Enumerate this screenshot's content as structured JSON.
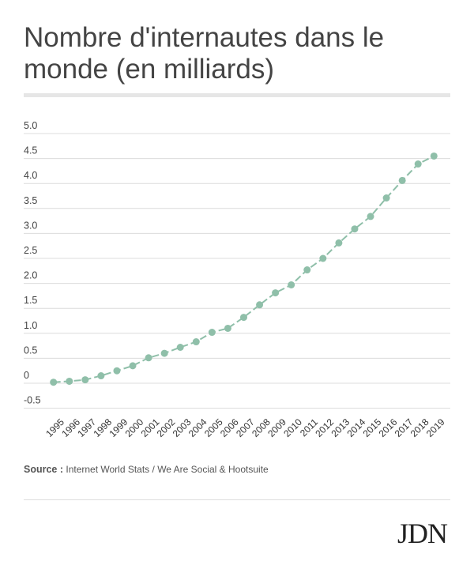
{
  "title": "Nombre d'internautes dans le monde (en milliards)",
  "source": {
    "label": "Source :",
    "text": "Internet World Stats / We Are Social & Hootsuite"
  },
  "logo": "JDN",
  "chart_data": {
    "type": "line",
    "title": "Nombre d'internautes dans le monde (en milliards)",
    "xlabel": "",
    "ylabel": "",
    "ylim": [
      -0.5,
      5.0
    ],
    "yticks": [
      "5.0",
      "4.5",
      "4.0",
      "3.5",
      "3.0",
      "2.5",
      "2.0",
      "1.5",
      "1.0",
      "0.5",
      "0",
      "-0.5"
    ],
    "ytick_values": [
      5.0,
      4.5,
      4.0,
      3.5,
      3.0,
      2.5,
      2.0,
      1.5,
      1.0,
      0.5,
      0,
      -0.5
    ],
    "grid": true,
    "color": "#8fbfa9",
    "categories": [
      "1995",
      "1996",
      "1997",
      "1998",
      "1999",
      "2000",
      "2001",
      "2002",
      "2003",
      "2004",
      "2005",
      "2006",
      "2007",
      "2008",
      "2009",
      "2010",
      "2011",
      "2012",
      "2013",
      "2014",
      "2015",
      "2016",
      "2017",
      "2018",
      "2019"
    ],
    "values": [
      0.02,
      0.04,
      0.07,
      0.15,
      0.25,
      0.35,
      0.51,
      0.6,
      0.72,
      0.83,
      1.02,
      1.1,
      1.32,
      1.57,
      1.81,
      1.97,
      2.27,
      2.5,
      2.81,
      3.09,
      3.34,
      3.71,
      4.06,
      4.39,
      4.55
    ]
  }
}
